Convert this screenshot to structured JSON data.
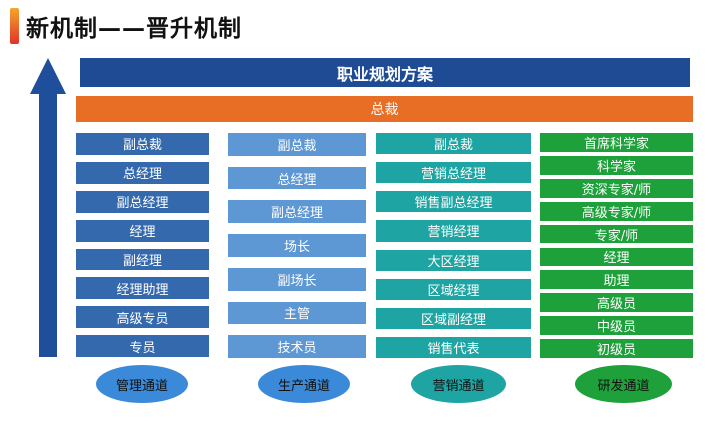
{
  "title": "新机制——晋升机制",
  "plan": "职业规划方案",
  "ceo": "总裁",
  "tracks": [
    {
      "name": "管理通道",
      "color": "#3569ad",
      "oval_color": "#3a8ad9",
      "levels": [
        "副总裁",
        "总经理",
        "副总经理",
        "经理",
        "副经理",
        "经理助理",
        "高级专员",
        "专员"
      ]
    },
    {
      "name": "生产通道",
      "color": "#5d97d4",
      "oval_color": "#3a8ad9",
      "levels": [
        "副总裁",
        "总经理",
        "副总经理",
        "场长",
        "副场长",
        "主管",
        "技术员"
      ]
    },
    {
      "name": "营销通道",
      "color": "#1ea4a2",
      "oval_color": "#1ea4a2",
      "levels": [
        "副总裁",
        "营销总经理",
        "销售副总经理",
        "营销经理",
        "大区经理",
        "区域经理",
        "区域副经理",
        "销售代表"
      ]
    },
    {
      "name": "研发通道",
      "color": "#1ea13a",
      "oval_color": "#1ea13a",
      "levels": [
        "首席科学家",
        "科学家",
        "资深专家/师",
        "高级专家/师",
        "专家/师",
        "经理",
        "助理",
        "高级员",
        "中级员",
        "初级员"
      ]
    }
  ]
}
